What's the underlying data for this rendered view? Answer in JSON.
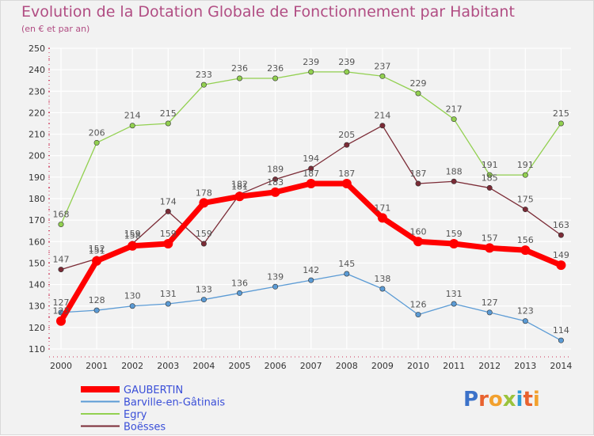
{
  "chart_data": {
    "type": "line",
    "title": "Evolution de la Dotation Globale de Fonctionnement par Habitant",
    "subtitle": "(en € et par an)",
    "xlabel": "",
    "ylabel": "",
    "x": [
      "2000",
      "2001",
      "2002",
      "2003",
      "2004",
      "2005",
      "2006",
      "2007",
      "2008",
      "2009",
      "2010",
      "2011",
      "2012",
      "2013",
      "2014"
    ],
    "ylim": [
      110,
      250
    ],
    "yticks": [
      110,
      120,
      130,
      140,
      150,
      160,
      170,
      180,
      190,
      200,
      210,
      220,
      230,
      240,
      250
    ],
    "grid": true,
    "legend_position": "bottom-left",
    "series": [
      {
        "name": "GAUBERTIN",
        "color": "#ff0000",
        "values": [
          123,
          151,
          158,
          159,
          178,
          181,
          183,
          187,
          187,
          171,
          160,
          159,
          157,
          156,
          149
        ]
      },
      {
        "name": "Barville-en-Gâtinais",
        "color": "#5b9bd5",
        "values": [
          127,
          128,
          130,
          131,
          133,
          136,
          139,
          142,
          145,
          138,
          126,
          131,
          127,
          123,
          114
        ]
      },
      {
        "name": "Egry",
        "color": "#92d050",
        "values": [
          168,
          206,
          214,
          215,
          233,
          236,
          236,
          239,
          239,
          237,
          229,
          217,
          191,
          191,
          215
        ]
      },
      {
        "name": "Boësses",
        "color": "#7b2b36",
        "values": [
          147,
          152,
          159,
          174,
          159,
          182,
          189,
          194,
          205,
          214,
          187,
          188,
          185,
          175,
          163
        ]
      }
    ]
  },
  "logo": {
    "text": "Proxiti"
  }
}
